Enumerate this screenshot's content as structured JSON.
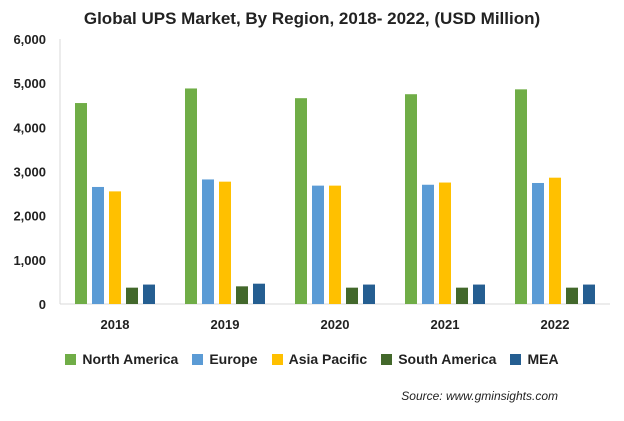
{
  "chart_data": {
    "type": "bar",
    "title": "Global UPS Market, By Region, 2018- 2022, (USD Million)",
    "categories": [
      "2018",
      "2019",
      "2020",
      "2021",
      "2022"
    ],
    "ylim": [
      0,
      6000
    ],
    "yticks": [
      "0",
      "1,000",
      "2,000",
      "3,000",
      "4,000",
      "5,000",
      "6,000"
    ],
    "ytick_values": [
      0,
      1000,
      2000,
      3000,
      4000,
      5000,
      6000
    ],
    "grid": false,
    "legend_position": "bottom",
    "series": [
      {
        "name": "North America",
        "color": "#70ad47",
        "values": [
          4550,
          4880,
          4660,
          4750,
          4860
        ]
      },
      {
        "name": "Europe",
        "color": "#5b9bd5",
        "values": [
          2650,
          2820,
          2680,
          2700,
          2740
        ]
      },
      {
        "name": "Asia Pacific",
        "color": "#ffc000",
        "values": [
          2550,
          2770,
          2680,
          2750,
          2860
        ]
      },
      {
        "name": "South America",
        "color": "#43682b",
        "values": [
          370,
          400,
          370,
          370,
          370
        ]
      },
      {
        "name": "MEA",
        "color": "#255e91",
        "values": [
          440,
          460,
          440,
          440,
          440
        ]
      }
    ]
  },
  "source": "Source: www.gminsights.com"
}
